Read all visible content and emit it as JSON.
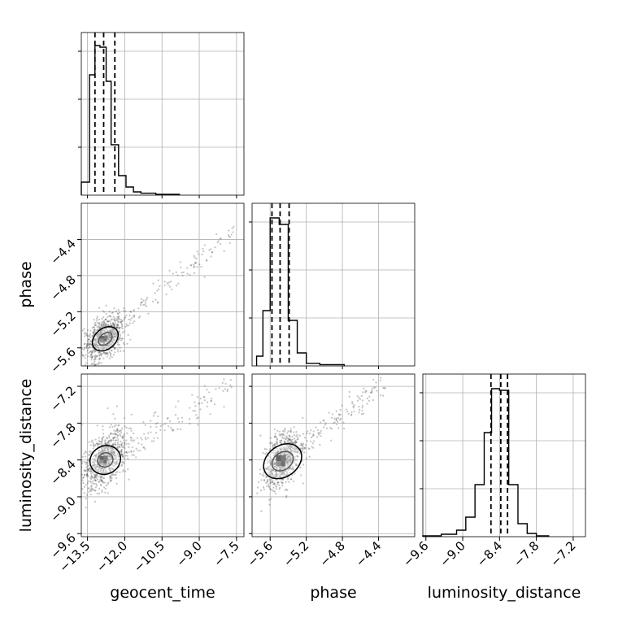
{
  "colors": {
    "ink": "#000000",
    "grid": "#b0b0b0",
    "scatter": "#555555"
  },
  "chart_data": {
    "type": "corner",
    "parameters": [
      {
        "name": "geocent_time",
        "label": "geocent_time",
        "range": [
          -13.75,
          -7.2
        ],
        "ticks": [
          "-13.5",
          "-12.0",
          "-10.5",
          "-9.0",
          "-7.5"
        ]
      },
      {
        "name": "phase",
        "label": "phase",
        "range": [
          -5.8,
          -4.0
        ],
        "ticks": [
          "-5.6",
          "-5.2",
          "-4.8",
          "-4.4"
        ]
      },
      {
        "name": "luminosity_distance",
        "label": "luminosity_distance",
        "range": [
          -9.65,
          -7.0
        ],
        "ticks": [
          "-9.6",
          "-9.0",
          "-8.4",
          "-7.8",
          "-7.2"
        ]
      }
    ],
    "histograms": [
      {
        "param": "geocent_time",
        "quantiles": [
          -13.2,
          -12.85,
          -12.4
        ],
        "bins": [
          {
            "x0": -13.75,
            "x1": -13.42,
            "count": 0.08
          },
          {
            "x0": -13.42,
            "x1": -13.2,
            "count": 0.74
          },
          {
            "x0": -13.2,
            "x1": -13.0,
            "count": 0.92
          },
          {
            "x0": -13.0,
            "x1": -12.75,
            "count": 0.91
          },
          {
            "x0": -12.75,
            "x1": -12.55,
            "count": 0.7
          },
          {
            "x0": -12.55,
            "x1": -12.25,
            "count": 0.31
          },
          {
            "x0": -12.25,
            "x1": -11.95,
            "count": 0.12
          },
          {
            "x0": -11.95,
            "x1": -11.65,
            "count": 0.05
          },
          {
            "x0": -11.65,
            "x1": -11.35,
            "count": 0.02
          },
          {
            "x0": -11.35,
            "x1": -10.75,
            "count": 0.012
          },
          {
            "x0": -10.75,
            "x1": -9.8,
            "count": 0.005
          }
        ]
      },
      {
        "param": "phase",
        "quantiles": [
          -5.58,
          -5.49,
          -5.39
        ],
        "bins": [
          {
            "x0": -5.75,
            "x1": -5.68,
            "count": 0.06
          },
          {
            "x0": -5.68,
            "x1": -5.6,
            "count": 0.34
          },
          {
            "x0": -5.6,
            "x1": -5.5,
            "count": 0.91
          },
          {
            "x0": -5.5,
            "x1": -5.4,
            "count": 0.87
          },
          {
            "x0": -5.4,
            "x1": -5.3,
            "count": 0.28
          },
          {
            "x0": -5.3,
            "x1": -5.2,
            "count": 0.08
          },
          {
            "x0": -5.2,
            "x1": -5.05,
            "count": 0.016
          },
          {
            "x0": -5.05,
            "x1": -4.78,
            "count": 0.008
          }
        ]
      },
      {
        "param": "luminosity_distance",
        "quantiles": [
          -8.54,
          -8.38,
          -8.27
        ],
        "bins": [
          {
            "x0": -9.65,
            "x1": -9.35,
            "count": 0.005
          },
          {
            "x0": -9.35,
            "x1": -9.1,
            "count": 0.015
          },
          {
            "x0": -9.1,
            "x1": -8.95,
            "count": 0.04
          },
          {
            "x0": -8.95,
            "x1": -8.8,
            "count": 0.12
          },
          {
            "x0": -8.8,
            "x1": -8.65,
            "count": 0.32
          },
          {
            "x0": -8.65,
            "x1": -8.53,
            "count": 0.64
          },
          {
            "x0": -8.53,
            "x1": -8.4,
            "count": 0.91
          },
          {
            "x0": -8.4,
            "x1": -8.25,
            "count": 0.9
          },
          {
            "x0": -8.25,
            "x1": -8.1,
            "count": 0.32
          },
          {
            "x0": -8.1,
            "x1": -7.95,
            "count": 0.08
          },
          {
            "x0": -7.95,
            "x1": -7.8,
            "count": 0.02
          },
          {
            "x0": -7.8,
            "x1": -7.6,
            "count": 0.005
          }
        ]
      }
    ],
    "pairs": [
      {
        "x": "geocent_time",
        "y": "phase",
        "center": [
          -12.85,
          -5.5
        ],
        "spread": [
          0.25,
          0.07
        ],
        "tail_end": [
          -7.6,
          -4.3
        ],
        "levels": [
          [
            0.3,
            0.06
          ],
          [
            0.55,
            0.12
          ]
        ]
      },
      {
        "x": "geocent_time",
        "y": "luminosity_distance",
        "center": [
          -12.85,
          -8.4
        ],
        "spread": [
          0.28,
          0.14
        ],
        "tail_end": [
          -7.6,
          -7.2
        ],
        "levels": [
          [
            0.3,
            0.12
          ],
          [
            0.6,
            0.24
          ]
        ]
      },
      {
        "x": "phase",
        "y": "luminosity_distance",
        "center": [
          -5.48,
          -8.42
        ],
        "spread": [
          0.06,
          0.13
        ],
        "tail_end": [
          -4.35,
          -7.2
        ],
        "levels": [
          [
            0.1,
            0.18
          ],
          [
            0.18,
            0.32
          ]
        ]
      }
    ]
  }
}
